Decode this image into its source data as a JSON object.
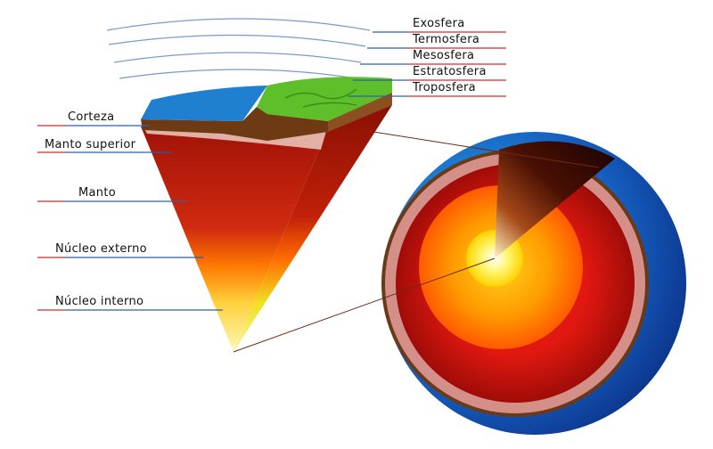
{
  "atmosphere_labels": [
    {
      "id": "exosfera",
      "text": "Exosfera"
    },
    {
      "id": "termosfera",
      "text": "Termosfera"
    },
    {
      "id": "mesosfera",
      "text": "Mesosfera"
    },
    {
      "id": "estratosfera",
      "text": "Estratosfera"
    },
    {
      "id": "troposfera",
      "text": "Troposfera"
    }
  ],
  "interior_labels": [
    {
      "id": "corteza",
      "text": "Corteza"
    },
    {
      "id": "manto-superior",
      "text": "Manto superior"
    },
    {
      "id": "manto",
      "text": "Manto"
    },
    {
      "id": "nucleo-externo",
      "text": "Núcleo externo"
    },
    {
      "id": "nucleo-interno",
      "text": "Núcleo interno"
    }
  ],
  "colors": {
    "label_line_red": "#d42a2a",
    "label_line_blue": "#2e5fa8",
    "ocean_blue": "#1f7fd0",
    "land_green": "#5fbf2a",
    "crust_brown": "#6b3b18",
    "upper_mantle": "#e0aaa0",
    "mantle": "#c41a10",
    "outer_core": "#ff7a00",
    "inner_core": "#f2f040"
  }
}
